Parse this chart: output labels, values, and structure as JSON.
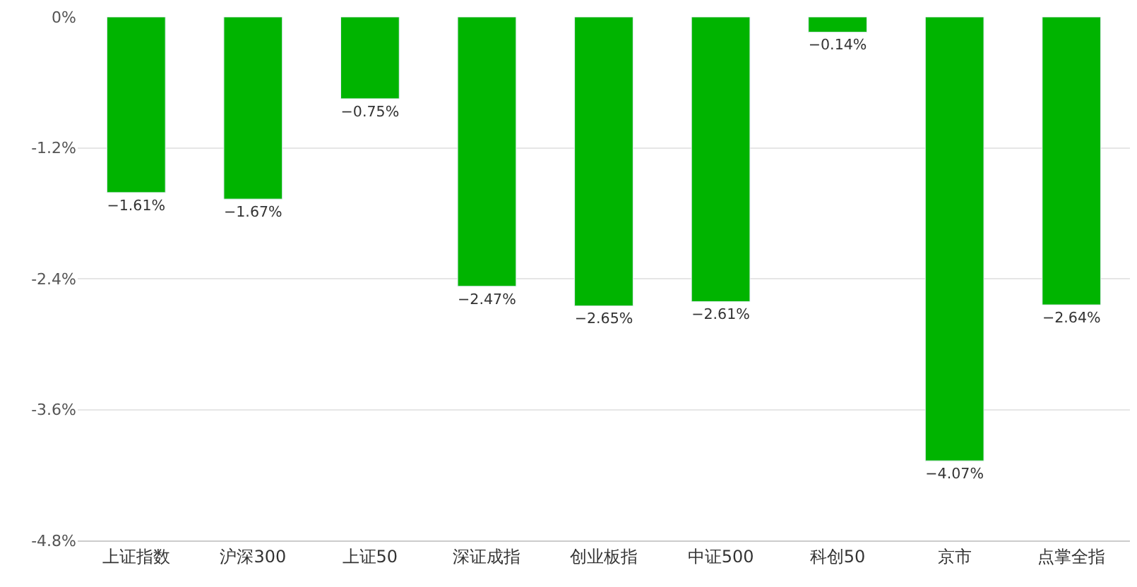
{
  "chart_data": {
    "type": "bar",
    "categories": [
      "上证指数",
      "沪深300",
      "上证50",
      "深证成指",
      "创业板指",
      "中证500",
      "科创50",
      "京市",
      "点掌全指"
    ],
    "values": [
      -1.61,
      -1.67,
      -0.75,
      -2.47,
      -2.65,
      -2.61,
      -0.14,
      -4.07,
      -2.64
    ],
    "value_labels": [
      "−1.61%",
      "−1.67%",
      "−0.75%",
      "−2.47%",
      "−2.65%",
      "−2.61%",
      "−0.14%",
      "−4.07%",
      "−2.64%"
    ],
    "color": "#00b400",
    "ylim": [
      -4.8,
      0
    ],
    "yticks": [
      {
        "value": 0,
        "label": "0%"
      },
      {
        "value": -1.2,
        "label": "-1.2%"
      },
      {
        "value": -2.4,
        "label": "-2.4%"
      },
      {
        "value": -3.6,
        "label": "-3.6%"
      },
      {
        "value": -4.8,
        "label": "-4.8%"
      }
    ],
    "grid": "y"
  }
}
